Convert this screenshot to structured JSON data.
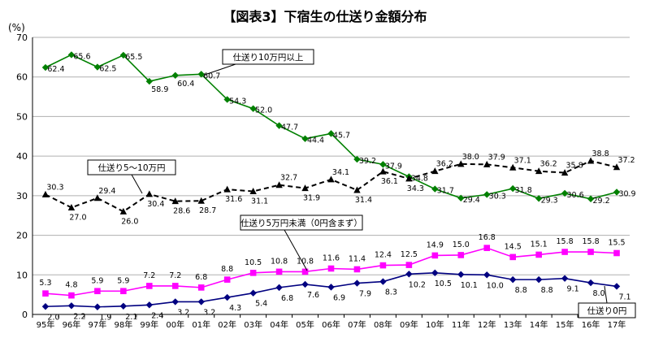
{
  "chart_data": {
    "type": "line",
    "title": "【図表3】下宿生の仕送り金額分布",
    "unit_label": "(%)",
    "ylim": [
      0,
      70
    ],
    "yticks": [
      0,
      10,
      20,
      30,
      40,
      50,
      60,
      70
    ],
    "grid": true,
    "categories": [
      "95年",
      "96年",
      "97年",
      "98年",
      "99年",
      "00年",
      "01年",
      "02年",
      "03年",
      "04年",
      "05年",
      "06年",
      "07年",
      "08年",
      "09年",
      "10年",
      "11年",
      "12年",
      "13年",
      "14年",
      "15年",
      "16年",
      "17年"
    ],
    "series": [
      {
        "name": "仕送り10万円以上",
        "color": "#008000",
        "marker": "diamond",
        "line_style": "solid",
        "values": [
          62.4,
          65.6,
          62.5,
          65.5,
          58.9,
          60.4,
          60.7,
          54.3,
          52.0,
          47.7,
          44.4,
          45.7,
          39.2,
          37.9,
          34.8,
          31.7,
          29.4,
          30.3,
          31.8,
          29.3,
          30.6,
          29.2,
          30.9
        ]
      },
      {
        "name": "仕送り5～10万円",
        "color": "#000000",
        "marker": "triangle",
        "line_style": "dashed",
        "values": [
          30.3,
          27.0,
          29.4,
          26.0,
          30.4,
          28.6,
          28.7,
          31.6,
          31.1,
          32.7,
          31.9,
          34.1,
          31.4,
          36.1,
          34.3,
          36.2,
          38.0,
          37.9,
          37.1,
          36.2,
          35.8,
          38.8,
          37.2
        ]
      },
      {
        "name": "仕送り5万円未満（0円含まず）",
        "color": "#ff00ff",
        "marker": "square",
        "line_style": "solid",
        "values": [
          5.3,
          4.8,
          5.9,
          5.9,
          7.2,
          7.2,
          6.8,
          8.8,
          10.5,
          10.8,
          10.8,
          11.6,
          11.4,
          12.4,
          12.5,
          14.9,
          15.0,
          16.8,
          14.5,
          15.1,
          15.8,
          15.8,
          15.5
        ]
      },
      {
        "name": "仕送り0円",
        "color": "#000080",
        "marker": "diamond",
        "line_style": "solid",
        "values": [
          2.0,
          2.2,
          1.9,
          2.1,
          2.4,
          3.2,
          3.2,
          4.3,
          5.4,
          6.8,
          7.6,
          6.9,
          7.9,
          8.3,
          10.2,
          10.5,
          10.1,
          10.0,
          8.8,
          8.8,
          9.1,
          8.0,
          7.1
        ]
      }
    ],
    "callouts": [
      {
        "series": 0,
        "text": "仕送り10万円以上"
      },
      {
        "series": 1,
        "text": "仕送り5～10万円"
      },
      {
        "series": 2,
        "text": "仕送り5万円未満（0円含まず）"
      },
      {
        "series": 3,
        "text": "仕送り0円"
      }
    ]
  }
}
